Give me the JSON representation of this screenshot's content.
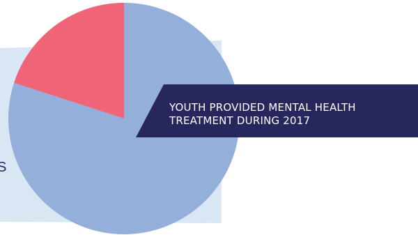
{
  "colors": {
    "background": "#ffffff",
    "panel": "#d9e6f4",
    "banner": "#27275e",
    "text_dark": "#27275e",
    "slice_large": "#95afdb",
    "slice_small": "#ef6477"
  },
  "page": {
    "left_text_fragment": "S"
  },
  "chart_data": {
    "type": "pie",
    "title": "YOUTH PROVIDED MENTAL HEALTH TREATMENT DURING 2017",
    "slices": [
      {
        "value": 80,
        "color": "#95afdb"
      },
      {
        "value": 20,
        "color": "#ef6477"
      }
    ],
    "start_angle_deg": 0,
    "direction": "clockwise",
    "legend": "none",
    "grid": false
  }
}
